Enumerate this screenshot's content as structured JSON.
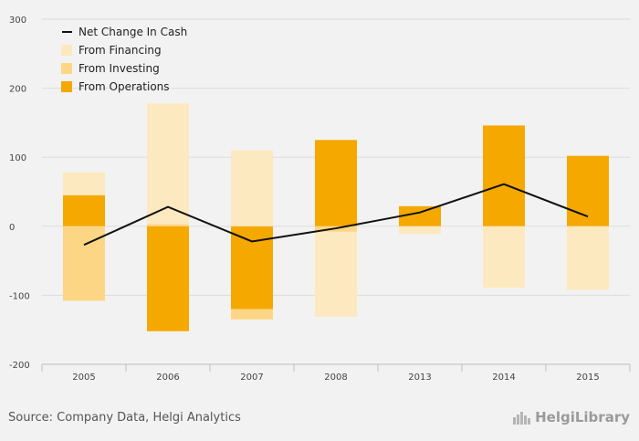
{
  "chart_data": {
    "type": "bar",
    "stacked": true,
    "categories": [
      "2005",
      "2006",
      "2007",
      "2008",
      "2013",
      "2014",
      "2015"
    ],
    "series": [
      {
        "name": "From Operations",
        "kind": "bar",
        "values": [
          45,
          -152,
          -120,
          125,
          29,
          146,
          102
        ],
        "color": "#f5a800"
      },
      {
        "name": "From Investing",
        "kind": "bar",
        "values": [
          -108,
          3,
          -15,
          -8,
          0,
          0,
          0
        ],
        "color": "#fdd685"
      },
      {
        "name": "From Financing",
        "kind": "bar",
        "values": [
          33,
          175,
          110,
          -123,
          -11,
          -89,
          -92
        ],
        "color": "#fde9bf"
      },
      {
        "name": "Net Change In Cash",
        "kind": "line",
        "values": [
          -27,
          28,
          -22,
          -3,
          20,
          61,
          14
        ],
        "color": "#111111"
      }
    ],
    "y_ticks": [
      "300",
      "200",
      "100",
      "0",
      "-100",
      "-200"
    ],
    "ylim": [
      -200,
      300
    ],
    "grid": true,
    "legend_position": "top-left"
  },
  "footer": {
    "source": "Source: Company Data, Helgi Analytics",
    "logo_text": "HelgiLibrary"
  },
  "logo_icon": "building-icon"
}
